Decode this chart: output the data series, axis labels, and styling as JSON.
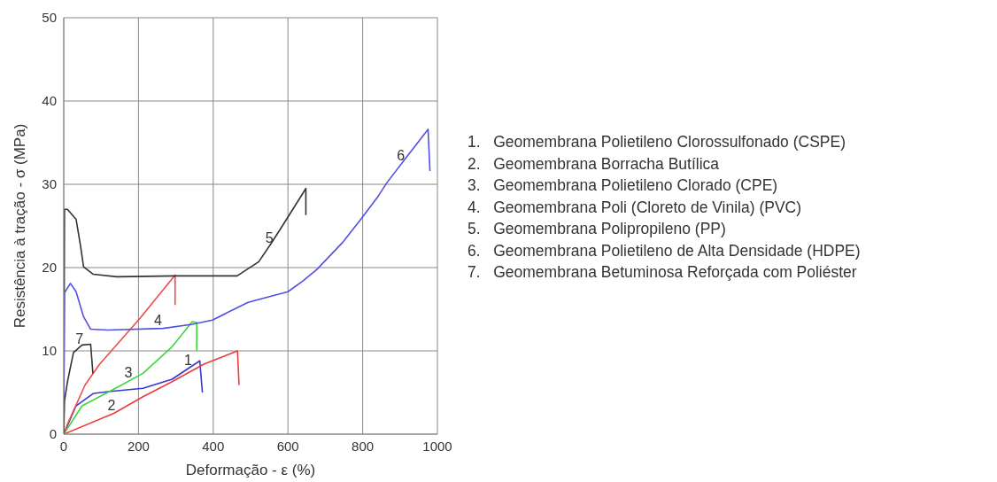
{
  "chart_data": {
    "type": "line",
    "xlabel": "Deformação - ε (%)",
    "ylabel": "Resistência à tração - σ (MPa)",
    "xlim": [
      0,
      1000
    ],
    "xticks": [
      0,
      200,
      400,
      600,
      800,
      1000
    ],
    "ylim": [
      0,
      50
    ],
    "yticks": [
      0,
      10,
      20,
      30,
      40,
      50
    ],
    "grid": true,
    "series": [
      {
        "color": "#3535d8",
        "x": [
          0,
          33,
          80,
          119,
          212,
          290,
          364,
          371
        ],
        "values": [
          0,
          3.4,
          4.9,
          5.1,
          5.5,
          6.6,
          8.8,
          5
        ]
      },
      {
        "color": "#ee3b3b",
        "x": [
          0,
          134,
          212,
          290,
          375,
          465,
          469
        ],
        "values": [
          0,
          2.5,
          4.5,
          6.3,
          8.4,
          10,
          5.9
        ]
      },
      {
        "color": "#3ad83a",
        "x": [
          0,
          49,
          134,
          212,
          290,
          344,
          356,
          356
        ],
        "values": [
          0,
          3.4,
          5.4,
          7.3,
          10.5,
          13.5,
          13.4,
          10
        ]
      },
      {
        "color": "#ee4b4b",
        "x": [
          0,
          9,
          57,
          96,
          204,
          298,
          298
        ],
        "values": [
          0,
          1.1,
          5.9,
          8.4,
          13.9,
          19.1,
          15.5
        ]
      },
      {
        "color": "#333333",
        "x": [
          0,
          2,
          10,
          33,
          45,
          53,
          79,
          142,
          300,
          464,
          522,
          555,
          585,
          648,
          648
        ],
        "values": [
          0,
          27,
          27,
          25.8,
          22.6,
          20.1,
          19.2,
          18.9,
          19,
          19,
          20.7,
          22.9,
          25,
          29.5,
          26.3
        ]
      },
      {
        "color": "#5050e6",
        "x": [
          0,
          2,
          18,
          33,
          53,
          72,
          119,
          266,
          344,
          398,
          492,
          515,
          600,
          640,
          678,
          748,
          795,
          842,
          865,
          923,
          975,
          980
        ],
        "values": [
          0,
          17,
          18.1,
          17.1,
          14.1,
          12.6,
          12.5,
          12.7,
          13.2,
          13.7,
          15.8,
          16.1,
          17.1,
          18.4,
          19.8,
          23.1,
          25.8,
          28.6,
          30.2,
          33.6,
          36.6,
          31.6
        ]
      },
      {
        "color": "#333333",
        "x": [
          0,
          2,
          10,
          26,
          49,
          72,
          78
        ],
        "values": [
          0,
          4,
          6.3,
          9.8,
          10.7,
          10.8,
          7.3
        ]
      }
    ],
    "annotations": [
      {
        "text": "1",
        "x": 333,
        "y": 7.9
      },
      {
        "text": "2",
        "x": 128,
        "y": 2.4
      },
      {
        "text": "3",
        "x": 173,
        "y": 6.4
      },
      {
        "text": "4",
        "x": 252,
        "y": 12.7
      },
      {
        "text": "5",
        "x": 550,
        "y": 22.6
      },
      {
        "text": "6",
        "x": 902,
        "y": 32.4
      },
      {
        "text": "7",
        "x": 42,
        "y": 10.4
      },
      "1.\tGeomembrana Polietileno Clorossulfonado (CSPE)",
      "2.\tGeomembrana Borracha Butílica",
      "3.\tGeomembrana Polietileno Clorado (CPE)",
      "4.\tGeomembrana Poli (Cloreto de Vinila) (PVC)",
      "5.\tGeomembrana Polipropileno (PP)",
      "6.\tGeomembrana Polietileno de Alta Densidade (HDPE)",
      "7.\tGeomembrana Betuminosa Reforçada com Poliéster"
    ]
  }
}
